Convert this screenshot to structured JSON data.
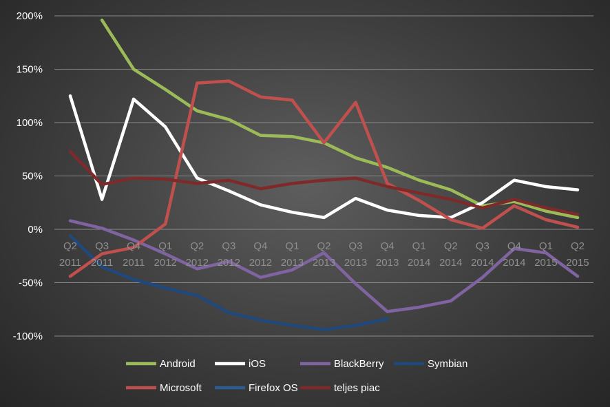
{
  "chart_data": {
    "type": "line",
    "title": "",
    "xlabel": "",
    "ylabel": "",
    "ylim": [
      -100,
      200
    ],
    "y_ticks": [
      "200%",
      "150%",
      "100%",
      "50%",
      "0%",
      "-50%",
      "-100%"
    ],
    "y_tick_values": [
      200,
      150,
      100,
      50,
      0,
      -50,
      -100
    ],
    "categories": [
      [
        "Q2",
        "2011"
      ],
      [
        "Q3",
        "2011"
      ],
      [
        "Q4",
        "2011"
      ],
      [
        "Q1",
        "2012"
      ],
      [
        "Q2",
        "2012"
      ],
      [
        "Q3",
        "2012"
      ],
      [
        "Q4",
        "2012"
      ],
      [
        "Q1",
        "2013"
      ],
      [
        "Q2",
        "2013"
      ],
      [
        "Q3",
        "2013"
      ],
      [
        "Q4",
        "2013"
      ],
      [
        "Q1",
        "2014"
      ],
      [
        "Q2",
        "2014"
      ],
      [
        "Q3",
        "2014"
      ],
      [
        "Q4",
        "2014"
      ],
      [
        "Q1",
        "2015"
      ],
      [
        "Q2",
        "2015"
      ]
    ],
    "grid": true,
    "legend_position": "bottom",
    "series": [
      {
        "name": "Android",
        "color": "#9bbb59",
        "values": [
          null,
          196,
          150,
          131,
          111,
          103,
          88,
          87,
          81,
          67,
          58,
          46,
          37,
          22,
          26,
          17,
          11
        ]
      },
      {
        "name": "iOS",
        "color": "#ffffff",
        "values": [
          125,
          28,
          122,
          96,
          48,
          36,
          23,
          16,
          11,
          29,
          18,
          13,
          11,
          25,
          46,
          40,
          37
        ]
      },
      {
        "name": "BlackBerry",
        "color": "#8064a2",
        "values": [
          8,
          1,
          -10,
          -23,
          -37,
          -30,
          -45,
          -38,
          -22,
          -51,
          -77,
          -73,
          -67,
          -45,
          -18,
          -22,
          -44
        ]
      },
      {
        "name": "Symbian",
        "color": "#1f497d",
        "values": [
          -6,
          -35,
          -47,
          -55,
          -62,
          -78,
          -85,
          -90,
          -94,
          -90,
          -84,
          null,
          null,
          null,
          null,
          null,
          null
        ]
      },
      {
        "name": "Microsoft",
        "color": "#c0504d",
        "values": [
          -44,
          -23,
          -17,
          5,
          137,
          139,
          124,
          121,
          81,
          119,
          43,
          27,
          9,
          1,
          22,
          9,
          2
        ]
      },
      {
        "name": "Firefox OS",
        "color": "#2c5d92",
        "values": [
          null,
          null,
          null,
          null,
          null,
          null,
          null,
          null,
          null,
          null,
          null,
          null,
          null,
          null,
          null,
          null,
          null
        ]
      },
      {
        "name": "teljes piac",
        "color": "#7f2a2a",
        "values": [
          73,
          42,
          48,
          47,
          43,
          46,
          38,
          43,
          46,
          48,
          40,
          34,
          28,
          20,
          28,
          20,
          14
        ]
      }
    ]
  }
}
